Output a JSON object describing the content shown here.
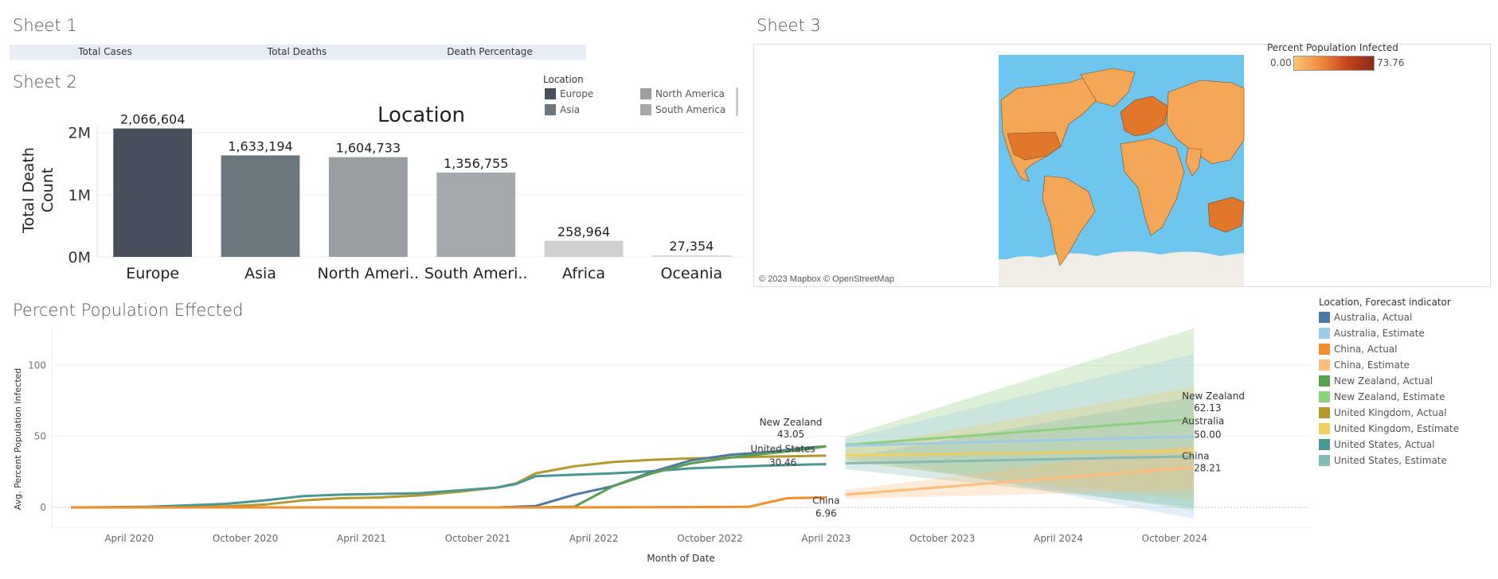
{
  "sheet1": {
    "title": "Sheet 1",
    "columns": [
      "Total Cases",
      "Total Deaths",
      "Death Percentage"
    ]
  },
  "sheet2": {
    "title": "Sheet 2",
    "legend_title": "Location",
    "legend": [
      {
        "label": "Europe",
        "color": "#4a505b"
      },
      {
        "label": "North America",
        "color": "#9a9fa1"
      },
      {
        "label": "Asia",
        "color": "#6b767d"
      },
      {
        "label": "South America",
        "color": "#a5a9ab"
      }
    ]
  },
  "sheet3": {
    "title": "Sheet 3",
    "legend_title": "Percent Population Infected",
    "scale_min": "0.00",
    "scale_max": "73.76",
    "attribution": "© 2023 Mapbox © OpenStreetMap",
    "colors": {
      "ocean": "#6ec6ee",
      "land": "#f4a857",
      "ice": "#f0ede6",
      "low": "#fcc575",
      "high": "#c6431c"
    }
  },
  "line_legend": {
    "title": "Location, Forecast indicator",
    "items": [
      {
        "label": "Australia, Actual",
        "color": "#4e79a7"
      },
      {
        "label": "Australia, Estimate",
        "color": "#a0cbe8"
      },
      {
        "label": "China, Actual",
        "color": "#f28e2b"
      },
      {
        "label": "China, Estimate",
        "color": "#ffbe7d"
      },
      {
        "label": "New Zealand, Actual",
        "color": "#59a14f"
      },
      {
        "label": "New Zealand, Estimate",
        "color": "#8cd17d"
      },
      {
        "label": "United Kingdom, Actual",
        "color": "#b6992d"
      },
      {
        "label": "United Kingdom, Estimate",
        "color": "#f1ce63"
      },
      {
        "label": "United States, Actual",
        "color": "#499894"
      },
      {
        "label": "United States, Estimate",
        "color": "#86bcb6"
      }
    ]
  },
  "chart_data": [
    {
      "type": "bar",
      "title": "Location",
      "ylabel": "Total Death Count",
      "xlabel": "",
      "categories": [
        "Europe",
        "Asia",
        "North Ameri..",
        "South Ameri..",
        "Africa",
        "Oceania"
      ],
      "values": [
        2066604,
        1633194,
        1604733,
        1356755,
        258964,
        27354
      ],
      "value_labels": [
        "2,066,604",
        "1,633,194",
        "1,604,733",
        "1,356,755",
        "258,964",
        "27,354"
      ],
      "colors": [
        "#4a505b",
        "#6b767d",
        "#9a9fa1",
        "#a5a9ab",
        "#cfcfcf",
        "#dcdcdc"
      ],
      "yticks": [
        {
          "v": 0,
          "label": "0M"
        },
        {
          "v": 1000000,
          "label": "1M"
        },
        {
          "v": 2000000,
          "label": "2M"
        }
      ],
      "ylim": [
        0,
        2150000
      ],
      "grid": true
    },
    {
      "type": "line",
      "title": "Percent Population Effected",
      "xlabel": "Month of Date",
      "ylabel": "Avg. Percent Population Infected",
      "xlim": [
        "2019-12",
        "2025-05"
      ],
      "ylim": [
        -14,
        126
      ],
      "yticks": [
        0,
        50,
        100
      ],
      "xticks": [
        {
          "date": "2020-04",
          "label": "April 2020"
        },
        {
          "date": "2020-10",
          "label": "October 2020"
        },
        {
          "date": "2021-04",
          "label": "April 2021"
        },
        {
          "date": "2021-10",
          "label": "October 2021"
        },
        {
          "date": "2022-04",
          "label": "April 2022"
        },
        {
          "date": "2022-10",
          "label": "October 2022"
        },
        {
          "date": "2023-04",
          "label": "April 2023"
        },
        {
          "date": "2023-10",
          "label": "October 2023"
        },
        {
          "date": "2024-04",
          "label": "April 2024"
        },
        {
          "date": "2024-10",
          "label": "October 2024"
        }
      ],
      "series": [
        {
          "location": "United Kingdom",
          "color": "#b6992d",
          "x": [
            "2020-01",
            "2020-03",
            "2020-05",
            "2020-07",
            "2020-09",
            "2020-11",
            "2021-01",
            "2021-03",
            "2021-05",
            "2021-07",
            "2021-09",
            "2021-11",
            "2021-12",
            "2022-01",
            "2022-03",
            "2022-05",
            "2022-07",
            "2022-09",
            "2022-11",
            "2023-01",
            "2023-03",
            "2023-04"
          ],
          "y": [
            0,
            0,
            0.3,
            0.5,
            0.8,
            2.0,
            5.0,
            6.5,
            7.0,
            8.5,
            11.0,
            14.0,
            17.0,
            24.0,
            29.0,
            32.0,
            33.5,
            34.5,
            35.2,
            35.8,
            36.2,
            36.5
          ]
        },
        {
          "location": "United States",
          "color": "#499894",
          "x": [
            "2020-01",
            "2020-03",
            "2020-05",
            "2020-07",
            "2020-09",
            "2020-11",
            "2021-01",
            "2021-03",
            "2021-05",
            "2021-07",
            "2021-09",
            "2021-11",
            "2021-12",
            "2022-01",
            "2022-03",
            "2022-05",
            "2022-07",
            "2022-09",
            "2022-11",
            "2023-01",
            "2023-03",
            "2023-04"
          ],
          "y": [
            0,
            0.2,
            0.5,
            1.5,
            2.5,
            5.0,
            8.0,
            9.0,
            9.5,
            10.0,
            12.0,
            14.0,
            16.5,
            22.0,
            23.0,
            24.0,
            25.5,
            27.5,
            28.5,
            29.5,
            30.2,
            30.46
          ]
        },
        {
          "location": "Australia",
          "color": "#4e79a7",
          "x": [
            "2020-01",
            "2021-01",
            "2021-11",
            "2022-01",
            "2022-03",
            "2022-05",
            "2022-07",
            "2022-09",
            "2022-11",
            "2023-01",
            "2023-03",
            "2023-04"
          ],
          "y": [
            0,
            0,
            0,
            1.0,
            9.0,
            15.0,
            25.0,
            33.0,
            37.0,
            39.0,
            42.0,
            43.05
          ]
        },
        {
          "location": "New Zealand",
          "color": "#59a14f",
          "x": [
            "2020-01",
            "2021-01",
            "2022-01",
            "2022-03",
            "2022-05",
            "2022-07",
            "2022-09",
            "2022-11",
            "2023-01",
            "2023-03",
            "2023-04"
          ],
          "y": [
            0,
            0,
            0,
            0.5,
            15.0,
            24.0,
            31.0,
            35.0,
            38.0,
            41.0,
            43.05
          ]
        },
        {
          "location": "China",
          "color": "#f28e2b",
          "x": [
            "2020-01",
            "2021-06",
            "2022-02",
            "2022-08",
            "2022-12",
            "2023-01",
            "2023-02",
            "2023-04"
          ],
          "y": [
            0,
            0,
            0,
            0.2,
            0.4,
            3.5,
            6.5,
            6.96
          ]
        }
      ],
      "forecast": [
        {
          "location": "New Zealand",
          "color": "#8cd17d",
          "x": [
            "2023-05",
            "2024-11"
          ],
          "y": [
            44,
            62.13
          ],
          "band_low": [
            34,
            -2
          ],
          "band_high": [
            50,
            126
          ]
        },
        {
          "location": "Australia",
          "color": "#a0cbe8",
          "x": [
            "2023-05",
            "2024-11"
          ],
          "y": [
            43.5,
            50.0
          ],
          "band_low": [
            38,
            -8
          ],
          "band_high": [
            48,
            108
          ]
        },
        {
          "location": "United Kingdom",
          "color": "#f1ce63",
          "x": [
            "2023-05",
            "2024-11"
          ],
          "y": [
            36.5,
            40
          ],
          "band_low": [
            32,
            5
          ],
          "band_high": [
            41,
            85
          ]
        },
        {
          "location": "United States",
          "color": "#86bcb6",
          "x": [
            "2023-05",
            "2024-11"
          ],
          "y": [
            31,
            36
          ],
          "band_low": [
            27,
            0
          ],
          "band_high": [
            35,
            78
          ]
        },
        {
          "location": "China",
          "color": "#ffbe7d",
          "x": [
            "2023-05",
            "2024-11"
          ],
          "y": [
            9,
            28.21
          ],
          "band_low": [
            6,
            12
          ],
          "band_high": [
            12,
            44
          ]
        }
      ],
      "labels": [
        {
          "text": "New Zealand",
          "value": "43.05",
          "x": "2023-03",
          "y": 43.05,
          "pos": "above"
        },
        {
          "text": "United States",
          "value": "30.46",
          "x": "2023-03",
          "y": 30.46,
          "pos": "below"
        },
        {
          "text": "China",
          "value": "6.96",
          "x": "2023-04",
          "y": 6.96,
          "pos": "below"
        },
        {
          "text": "New Zealand",
          "value": "62.13",
          "x": "2024-11",
          "y": 62.13,
          "pos": "right"
        },
        {
          "text": "Australia",
          "value": "50.00",
          "x": "2024-11",
          "y": 50.0,
          "pos": "right"
        },
        {
          "text": "China",
          "value": "28.21",
          "x": "2024-11",
          "y": 28.21,
          "pos": "right"
        }
      ]
    }
  ]
}
